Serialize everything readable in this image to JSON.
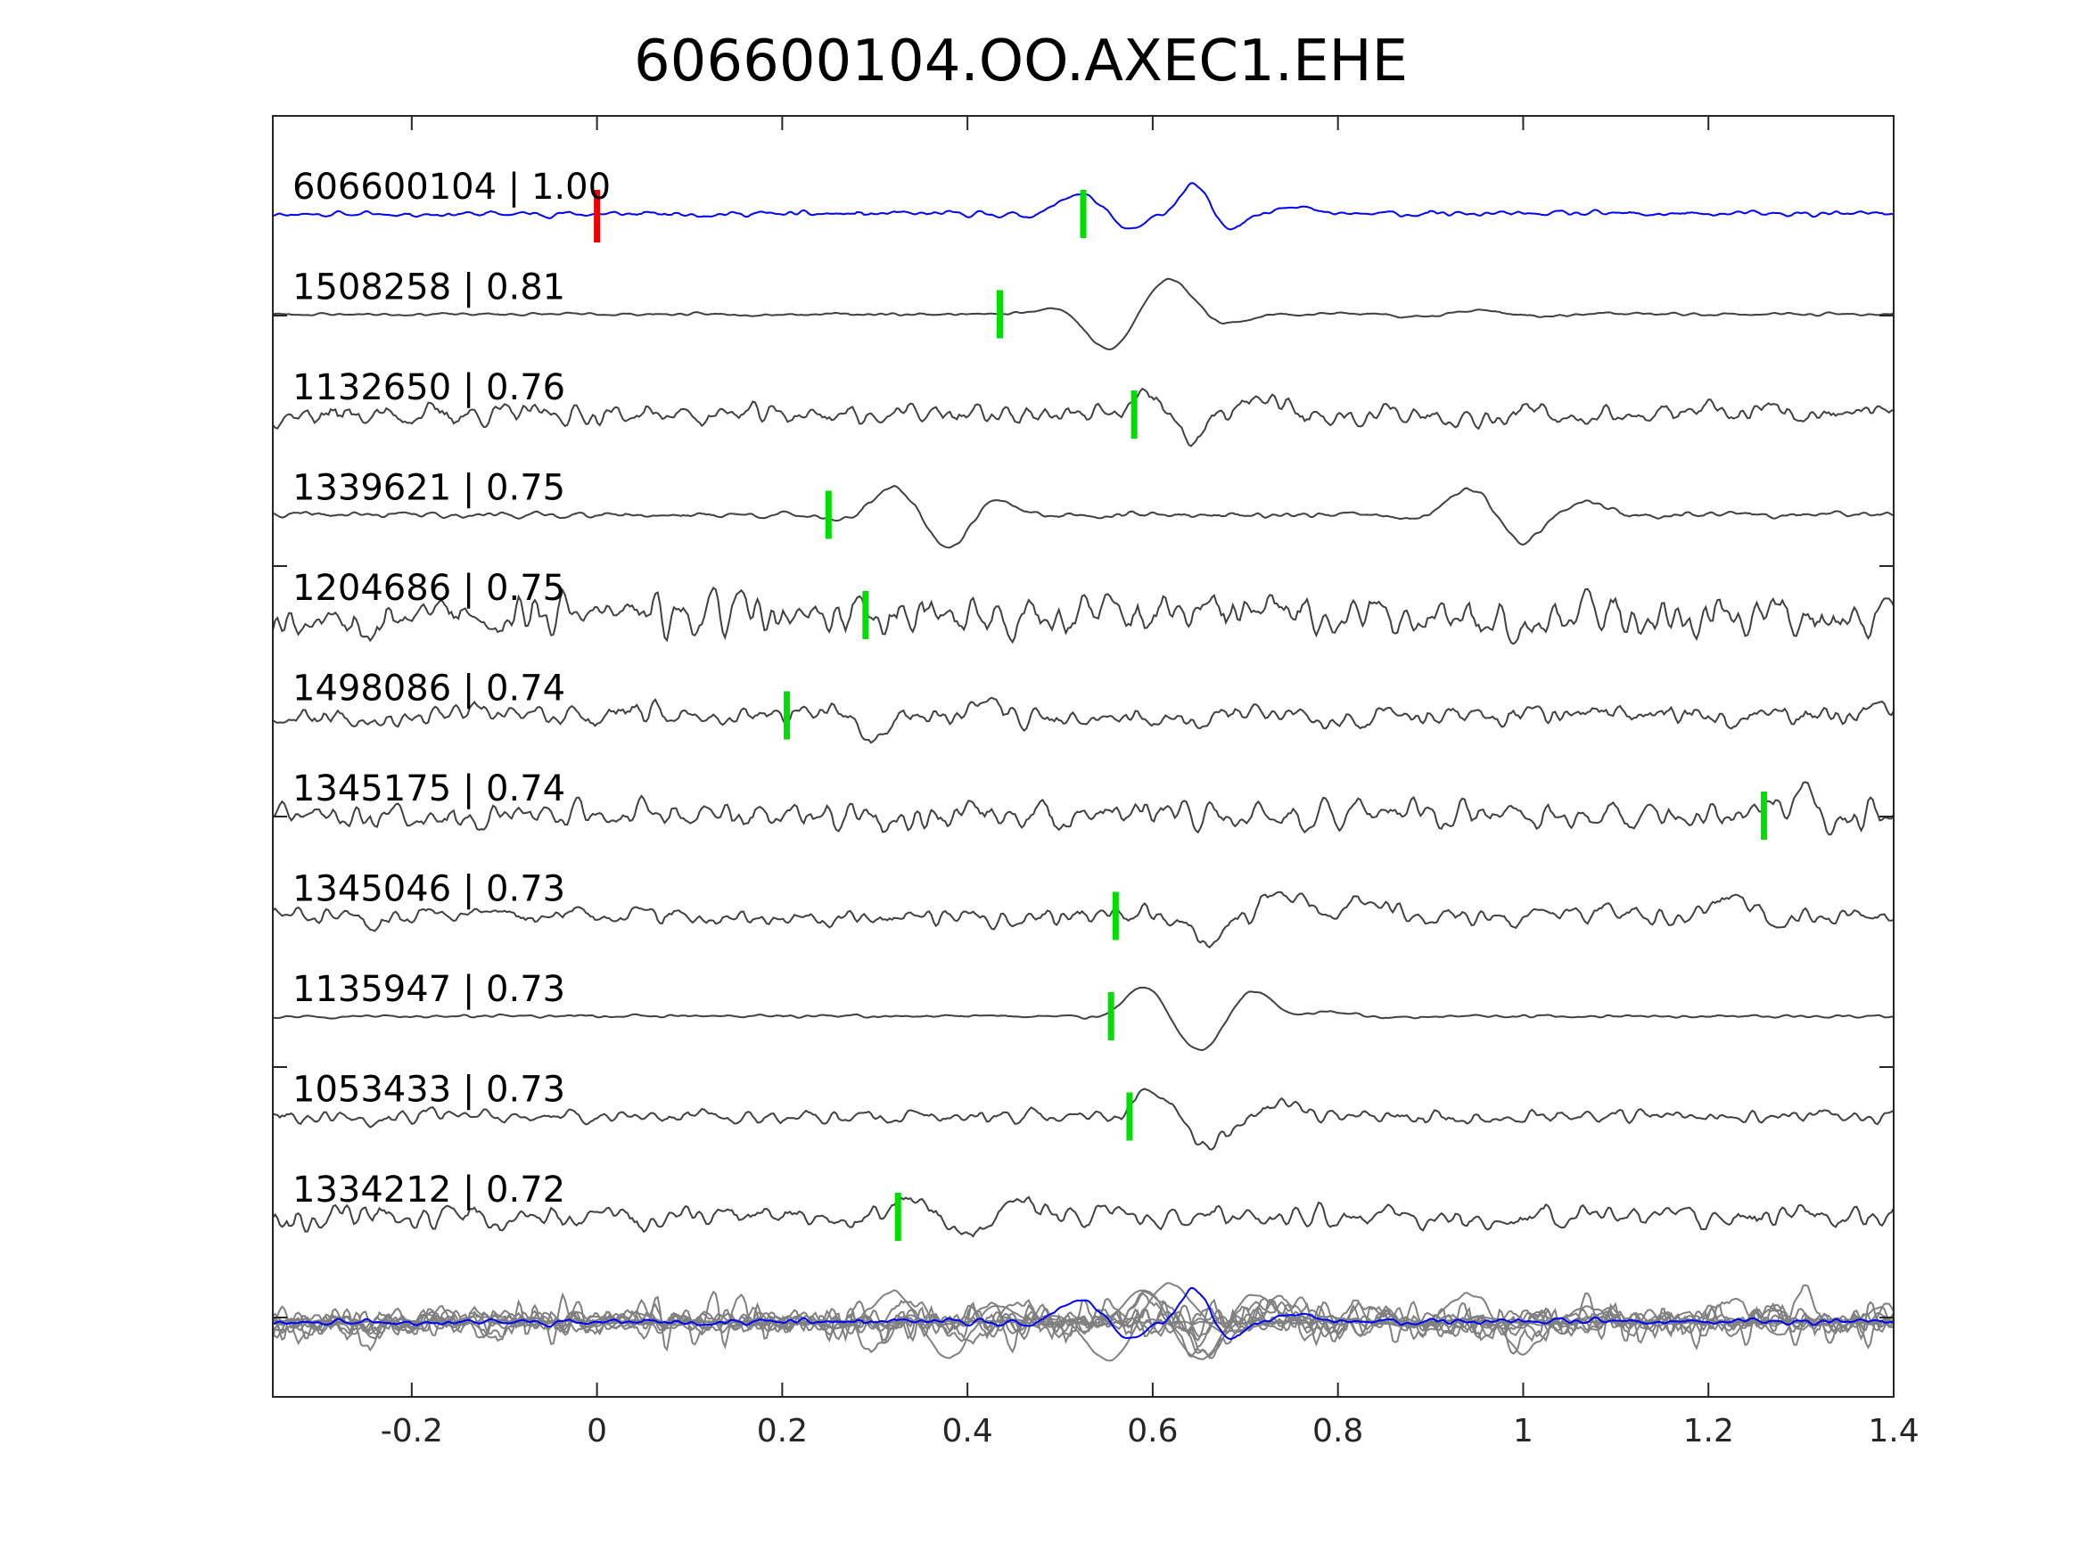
{
  "chart_data": {
    "type": "line",
    "title": "606600104.OO.AXEC1.EHE",
    "xlabel": "",
    "ylabel": "",
    "xlim": [
      -0.35,
      1.4
    ],
    "xticks": [
      -0.2,
      0,
      0.2,
      0.4,
      0.6,
      0.8,
      1,
      1.2,
      1.4
    ],
    "xtick_labels": [
      "-0.2",
      "0",
      "0.2",
      "0.4",
      "0.6",
      "0.8",
      "1",
      "1.2",
      "1.4"
    ],
    "grid": false,
    "colors": {
      "reference": "#0000ff",
      "template": "#404040",
      "stack": "#808080",
      "pick": "#00dd00",
      "origin_pick": "#ee0000",
      "axes": "#262626"
    },
    "reference_pick": 0.0,
    "traces": [
      {
        "label": "606600104 | 1.00",
        "pick": 0.525,
        "reference": true,
        "seed": 11,
        "noise": 0.12,
        "events": [
          [
            0.52,
            0.75,
            0.045,
            0.03
          ],
          [
            0.575,
            -0.55,
            0.045,
            0.02
          ],
          [
            0.645,
            1.1,
            0.045,
            0.018
          ],
          [
            0.68,
            -0.5,
            0.045,
            0.02
          ],
          [
            0.75,
            0.35,
            0.045,
            0.02
          ]
        ]
      },
      {
        "label": "1508258 | 0.81",
        "pick": 0.435,
        "seed": 23,
        "noise": 0.06,
        "events": [
          [
            0.55,
            -1.0,
            0.04,
            0.04
          ],
          [
            0.62,
            1.1,
            0.04,
            0.045
          ],
          [
            0.95,
            0.15,
            0.04,
            0.08
          ]
        ]
      },
      {
        "label": "1132650 | 0.76",
        "pick": 0.58,
        "seed": 37,
        "noise": 0.45,
        "events": [
          [
            0.6,
            0.6,
            0.045,
            0.02
          ],
          [
            0.64,
            -0.9,
            0.045,
            0.02
          ],
          [
            0.72,
            0.5,
            0.045,
            0.025
          ]
        ]
      },
      {
        "label": "1339621 | 0.75",
        "pick": 0.25,
        "seed": 41,
        "noise": 0.12,
        "events": [
          [
            0.32,
            0.85,
            0.04,
            0.035
          ],
          [
            0.38,
            -1.0,
            0.04,
            0.035
          ],
          [
            0.43,
            0.35,
            0.04,
            0.03
          ],
          [
            0.94,
            0.9,
            0.04,
            0.035
          ],
          [
            1.0,
            -0.8,
            0.04,
            0.03
          ],
          [
            1.07,
            0.45,
            0.04,
            0.035
          ]
        ]
      },
      {
        "label": "1204686 | 0.75",
        "pick": 0.29,
        "seed": 53,
        "noise": 0.9,
        "events": []
      },
      {
        "label": "1498086 | 0.74",
        "pick": 0.205,
        "seed": 67,
        "noise": 0.45,
        "events": [
          [
            0.3,
            -0.9,
            0.035,
            0.025
          ],
          [
            0.41,
            0.45,
            0.035,
            0.03
          ]
        ]
      },
      {
        "label": "1345175 | 0.74",
        "pick": 1.26,
        "seed": 71,
        "noise": 0.6,
        "events": [
          [
            1.3,
            0.9,
            0.04,
            0.02
          ],
          [
            1.33,
            -0.5,
            0.04,
            0.02
          ]
        ]
      },
      {
        "label": "1345046 | 0.73",
        "pick": 0.56,
        "seed": 83,
        "noise": 0.4,
        "events": [
          [
            0.66,
            -0.8,
            0.045,
            0.025
          ],
          [
            0.74,
            0.8,
            0.045,
            0.03
          ],
          [
            0.83,
            0.7,
            0.045,
            0.03
          ],
          [
            1.22,
            0.6,
            0.045,
            0.03
          ]
        ]
      },
      {
        "label": "1135947 | 0.73",
        "pick": 0.555,
        "seed": 97,
        "noise": 0.06,
        "events": [
          [
            0.59,
            0.95,
            0.045,
            0.03
          ],
          [
            0.65,
            -1.15,
            0.045,
            0.035
          ],
          [
            0.71,
            0.85,
            0.045,
            0.03
          ],
          [
            0.79,
            0.2,
            0.045,
            0.05
          ]
        ]
      },
      {
        "label": "1053433 | 0.73",
        "pick": 0.575,
        "seed": 101,
        "noise": 0.3,
        "events": [
          [
            0.6,
            0.9,
            0.045,
            0.025
          ],
          [
            0.66,
            -1.0,
            0.045,
            0.03
          ],
          [
            0.74,
            0.5,
            0.045,
            0.03
          ]
        ]
      },
      {
        "label": "1334212 | 0.72",
        "pick": 0.325,
        "seed": 113,
        "noise": 0.5,
        "events": [
          [
            0.34,
            0.6,
            0.04,
            0.02
          ],
          [
            0.4,
            -0.6,
            0.04,
            0.025
          ],
          [
            0.46,
            0.5,
            0.04,
            0.025
          ]
        ]
      }
    ]
  }
}
